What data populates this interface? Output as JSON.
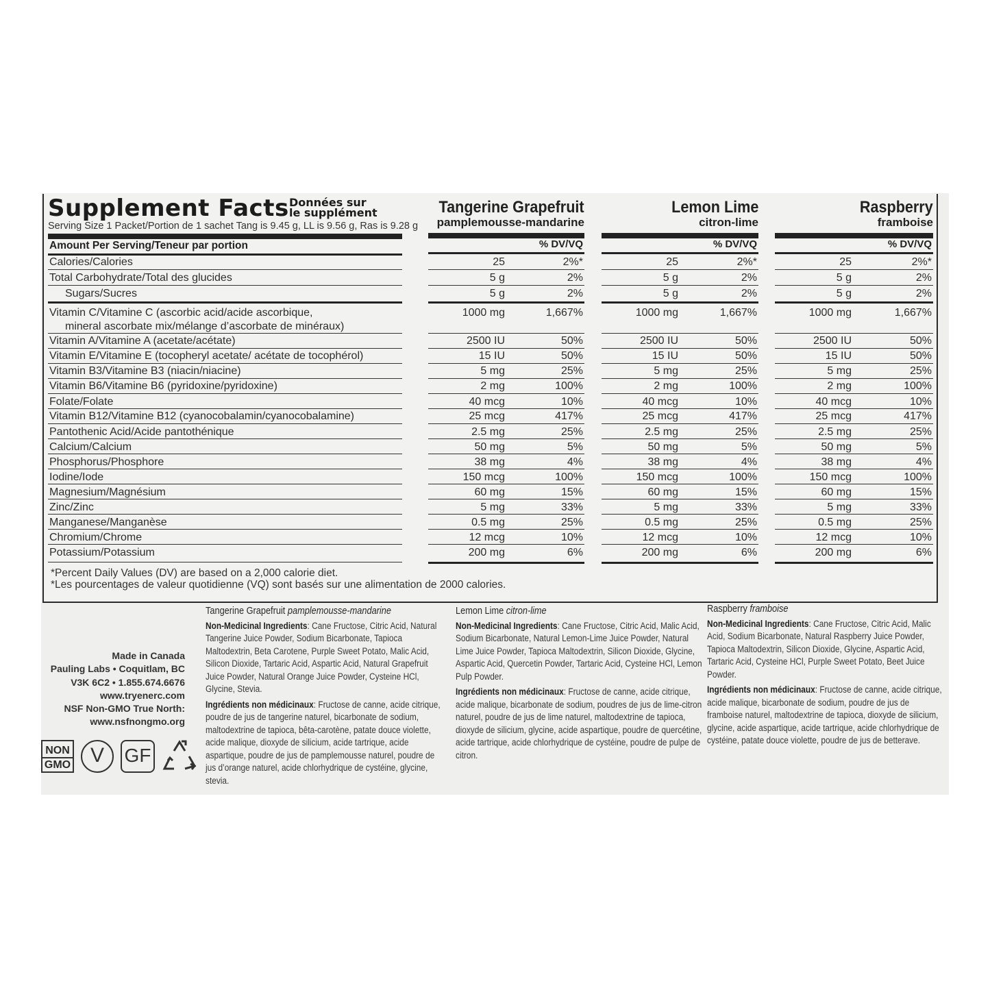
{
  "header": {
    "title": "Supplement Facts",
    "title_fr_line1": "Données sur",
    "title_fr_line2": "le supplément",
    "serving": "Serving Size 1 Packet/Portion de 1 sachet Tang is 9.45 g, LL is 9.56 g, Ras is 9.28 g",
    "amount_per_serving": "Amount Per Serving/Teneur par portion"
  },
  "flavors": [
    {
      "name": "Tangerine Grapefruit",
      "name_fr": "pamplemousse-mandarine",
      "dv_header": "% DV/VQ"
    },
    {
      "name": "Lemon Lime",
      "name_fr": "citron-lime",
      "dv_header": "% DV/VQ"
    },
    {
      "name": "Raspberry",
      "name_fr": "framboise",
      "dv_header": "% DV/VQ"
    }
  ],
  "nutrients": [
    {
      "label": "Calories/Calories",
      "amount": "25",
      "dv": "2%*"
    },
    {
      "label": "Total Carbohydrate/Total des glucides",
      "amount": "5 g",
      "dv": "2%"
    },
    {
      "label": "Sugars/Sucres",
      "amount": "5 g",
      "dv": "2%",
      "indent": true
    },
    {
      "label": "Vitamin C/Vitamine C (ascorbic acid/acide ascorbique,",
      "label2": "mineral ascorbate mix/mélange d’ascorbate de minéraux)",
      "amount": "1000 mg",
      "dv": "1,667%"
    },
    {
      "label": "Vitamin A/Vitamine A (acetate/acétate)",
      "amount": "2500 IU",
      "dv": "50%"
    },
    {
      "label": "Vitamin E/Vitamine E (tocopheryl acetate/ acétate de tocophérol)",
      "amount": "15 IU",
      "dv": "50%"
    },
    {
      "label": "Vitamin B3/Vitamine B3 (niacin/niacine)",
      "amount": "5 mg",
      "dv": "25%"
    },
    {
      "label": "Vitamin B6/Vitamine B6 (pyridoxine/pyridoxine)",
      "amount": "2 mg",
      "dv": "100%"
    },
    {
      "label": "Folate/Folate",
      "amount": "40 mcg",
      "dv": "10%"
    },
    {
      "label": "Vitamin B12/Vitamine B12 (cyanocobalamin/cyanocobalamine)",
      "amount": "25 mcg",
      "dv": "417%"
    },
    {
      "label": "Pantothenic Acid/Acide pantothénique",
      "amount": "2.5 mg",
      "dv": "25%"
    },
    {
      "label": "Calcium/Calcium",
      "amount": "50 mg",
      "dv": "5%"
    },
    {
      "label": "Phosphorus/Phosphore",
      "amount": "38 mg",
      "dv": "4%"
    },
    {
      "label": "Iodine/Iode",
      "amount": "150 mcg",
      "dv": "100%"
    },
    {
      "label": "Magnesium/Magnésium",
      "amount": "60 mg",
      "dv": "15%"
    },
    {
      "label": "Zinc/Zinc",
      "amount": "5 mg",
      "dv": "33%"
    },
    {
      "label": "Manganese/Manganèse",
      "amount": "0.5 mg",
      "dv": "25%"
    },
    {
      "label": "Chromium/Chrome",
      "amount": "12 mcg",
      "dv": "10%"
    },
    {
      "label": "Potassium/Potassium",
      "amount": "200 mg",
      "dv": "6%"
    }
  ],
  "footnotes": [
    "*Percent Daily Values (DV) are based on a 2,000 calorie diet.",
    "*Les pourcentages de valeur quotidienne (VQ) sont basés sur une alimentation de 2000 calories."
  ],
  "company": {
    "lines": [
      "Made in Canada",
      "Pauling Labs • Coquitlam, BC",
      "V3K 6C2 • 1.855.674.6676",
      "www.tryenerc.com",
      "NSF Non-GMO True North:",
      "www.nsfnongmo.org"
    ],
    "logos": {
      "non_gmo_1": "NON",
      "non_gmo_2": "GMO",
      "vegan": "V",
      "gluten_free": "GF",
      "recycle": "recycle-icon"
    }
  },
  "ingredients": [
    {
      "flavor": "Tangerine Grapefruit",
      "flavor_fr": "pamplemousse-mandarine",
      "en_label": "Non-Medicinal Ingredients",
      "en_text": ": Cane Fructose, Citric Acid, Natural Tangerine Juice Powder, Sodium Bicarbonate, Tapioca Maltodextrin, Beta Carotene, Purple Sweet Potato, Malic Acid, Silicon Dioxide, Tartaric Acid, Aspartic Acid, Natural Grapefruit Juice Powder, Natural Orange Juice Powder, Cysteine HCl, Glycine, Stevia.",
      "fr_label": "Ingrédients non médicinaux",
      "fr_text": ": Fructose de canne, acide citrique, poudre de jus de tangerine naturel, bicarbonate de sodium, maltodextrine de tapioca, bêta-carotène, patate douce violette, acide malique, dioxyde de silicium, acide tartrique, acide aspartique, poudre de jus de pamplemousse naturel, poudre de jus d’orange naturel, acide chlorhydrique de cystéine, glycine, stevia."
    },
    {
      "flavor": "Lemon Lime",
      "flavor_fr": "citron-lime",
      "en_label": "Non-Medicinal Ingredients",
      "en_text": ": Cane Fructose, Citric Acid, Malic Acid, Sodium Bicarbonate, Natural Lemon-Lime Juice Powder, Natural Lime Juice Powder, Tapioca Maltodextrin, Silicon Dioxide, Glycine, Aspartic Acid, Quercetin Powder, Tartaric Acid, Cysteine HCl, Lemon Pulp Powder.",
      "fr_label": "Ingrédients non médicinaux",
      "fr_text": ": Fructose de canne, acide citrique, acide malique, bicarbonate de sodium, poudres de jus de lime-citron naturel, poudre de jus de lime naturel, maltodextrine de tapioca, dioxyde de silicium,  glycine, acide aspartique, poudre de quercétine, acide tartrique, acide chlorhydrique de cystéine, poudre de pulpe de citron."
    },
    {
      "flavor": "Raspberry",
      "flavor_fr": "framboise",
      "en_label": "Non-Medicinal Ingredients",
      "en_text": ": Cane Fructose, Citric Acid, Malic Acid, Sodium Bicarbonate, Natural Raspberry Juice Powder, Tapioca Maltodextrin, Silicon Dioxide, Glycine, Aspartic Acid, Tartaric Acid, Cysteine HCl, Purple Sweet Potato, Beet Juice Powder.",
      "fr_label": "Ingrédients non médicinaux",
      "fr_text": ": Fructose de canne, acide citrique, acide malique, bicarbonate de sodium, poudre de jus de framboise naturel, maltodextrine de tapioca, dioxyde de silicium, glycine, acide aspartique, acide tartrique, acide chlorhydrique de cystéine, patate douce violette, poudre de jus de betterave."
    }
  ]
}
